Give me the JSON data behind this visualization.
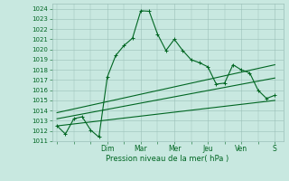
{
  "title": "Pression niveau de la mer( hPa )",
  "bg_color": "#c8e8e0",
  "grid_color": "#9bbfb8",
  "line_color": "#006622",
  "line_color_main": "#004d18",
  "line_width": 0.8,
  "marker_size": 2.5,
  "ylim": [
    1011,
    1024.5
  ],
  "xlim": [
    -0.3,
    13.5
  ],
  "ytick_labels": [
    "1011",
    "1012",
    "1013",
    "1014",
    "1015",
    "1016",
    "1017",
    "1018",
    "1019",
    "1020",
    "1021",
    "1022",
    "1023",
    "1024"
  ],
  "ytick_vals": [
    1011,
    1012,
    1013,
    1014,
    1015,
    1016,
    1017,
    1018,
    1019,
    1020,
    1021,
    1022,
    1023,
    1024
  ],
  "day_labels": [
    "Dim",
    "Mar",
    "Mer",
    "Jeu",
    "Ven",
    "S"
  ],
  "day_positions": [
    3.0,
    5.0,
    7.0,
    9.0,
    11.0,
    13.0
  ],
  "series_main": {
    "x": [
      0,
      0.5,
      1,
      1.5,
      2,
      2.5,
      3,
      3.5,
      4,
      4.5,
      5,
      5.5,
      6,
      6.5,
      7,
      7.5,
      8,
      8.5,
      9,
      9.5,
      10,
      10.5,
      11,
      11.5,
      12,
      12.5,
      13
    ],
    "y": [
      1012.5,
      1011.7,
      1013.2,
      1013.4,
      1012.1,
      1011.4,
      1017.3,
      1019.4,
      1020.4,
      1021.1,
      1023.8,
      1023.75,
      1021.5,
      1019.9,
      1021.0,
      1019.9,
      1019.0,
      1018.7,
      1018.3,
      1016.6,
      1016.7,
      1018.5,
      1018.0,
      1017.7,
      1016.0,
      1015.2,
      1015.5
    ]
  },
  "series_upper": {
    "x": [
      0,
      13
    ],
    "y": [
      1013.8,
      1018.5
    ]
  },
  "series_mid": {
    "x": [
      0,
      13
    ],
    "y": [
      1013.2,
      1017.2
    ]
  },
  "series_lower": {
    "x": [
      0,
      13
    ],
    "y": [
      1012.5,
      1015.0
    ]
  }
}
